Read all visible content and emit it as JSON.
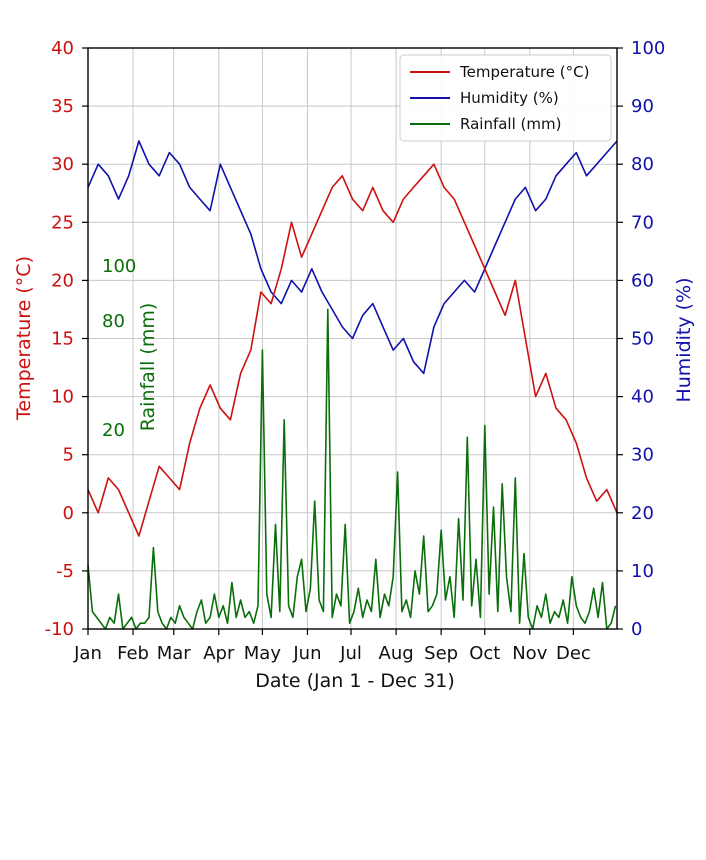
{
  "chart_data": {
    "type": "line",
    "title": "",
    "xlabel": "Date (Jan 1 - Dec 31)",
    "x_tick_labels": [
      "Jan",
      "Feb",
      "Mar",
      "Apr",
      "May",
      "Jun",
      "Jul",
      "Aug",
      "Sep",
      "Oct",
      "Nov",
      "Dec"
    ],
    "x_tick_days": [
      1,
      32,
      60,
      91,
      121,
      152,
      182,
      213,
      244,
      274,
      305,
      335
    ],
    "xlim": [
      1,
      365
    ],
    "grid": true,
    "legend_position": "top-right",
    "left_axis": {
      "label": "Temperature (°C)",
      "ylim": [
        -10,
        40
      ],
      "ticks": [
        -10,
        -5,
        0,
        5,
        10,
        15,
        20,
        25,
        30,
        35,
        40
      ],
      "color": "#cc1111"
    },
    "right_axis": {
      "label": "Humidity (%)",
      "ylim": [
        0,
        100
      ],
      "ticks": [
        0,
        10,
        20,
        30,
        40,
        50,
        60,
        70,
        80,
        90,
        100
      ],
      "color": "#1111aa"
    },
    "inset_axis": {
      "label": "Rainfall (mm)",
      "ticks": [
        "100",
        "80",
        "20"
      ],
      "color": "#0a6e0a"
    },
    "series": [
      {
        "name": "Temperature (°C)",
        "axis": "left",
        "color": "#cc1111",
        "x": [
          1,
          8,
          15,
          22,
          29,
          36,
          43,
          50,
          57,
          64,
          71,
          78,
          85,
          92,
          99,
          106,
          113,
          120,
          127,
          134,
          141,
          148,
          155,
          162,
          169,
          176,
          183,
          190,
          197,
          204,
          211,
          218,
          225,
          232,
          239,
          246,
          253,
          260,
          267,
          274,
          281,
          288,
          295,
          302,
          309,
          316,
          323,
          330,
          337,
          344,
          351,
          358,
          365
        ],
        "values": [
          2,
          0,
          3,
          2,
          0,
          -2,
          1,
          4,
          3,
          2,
          6,
          9,
          11,
          9,
          8,
          12,
          14,
          19,
          18,
          21,
          25,
          22,
          24,
          26,
          28,
          29,
          27,
          26,
          28,
          26,
          25,
          27,
          28,
          29,
          30,
          28,
          27,
          25,
          23,
          21,
          19,
          17,
          20,
          15,
          10,
          12,
          9,
          8,
          6,
          3,
          1,
          2,
          0
        ]
      },
      {
        "name": "Humidity (%)",
        "axis": "right",
        "color": "#1111aa",
        "x": [
          1,
          8,
          15,
          22,
          29,
          36,
          43,
          50,
          57,
          64,
          71,
          78,
          85,
          92,
          99,
          106,
          113,
          120,
          127,
          134,
          141,
          148,
          155,
          162,
          169,
          176,
          183,
          190,
          197,
          204,
          211,
          218,
          225,
          232,
          239,
          246,
          253,
          260,
          267,
          274,
          281,
          288,
          295,
          302,
          309,
          316,
          323,
          330,
          337,
          344,
          351,
          358,
          365
        ],
        "values": [
          76,
          80,
          78,
          74,
          78,
          84,
          80,
          78,
          82,
          80,
          76,
          74,
          72,
          80,
          76,
          72,
          68,
          62,
          58,
          56,
          60,
          58,
          62,
          58,
          55,
          52,
          50,
          54,
          56,
          52,
          48,
          50,
          46,
          44,
          52,
          56,
          58,
          60,
          58,
          62,
          66,
          70,
          74,
          76,
          72,
          74,
          78,
          80,
          82,
          78,
          80,
          82,
          84
        ]
      },
      {
        "name": "Rainfall (mm)",
        "axis": "right",
        "color": "#0a6e0a",
        "x": [
          1,
          4,
          7,
          10,
          13,
          16,
          19,
          22,
          25,
          28,
          31,
          34,
          37,
          40,
          43,
          46,
          49,
          52,
          55,
          58,
          61,
          64,
          67,
          70,
          73,
          76,
          79,
          82,
          85,
          88,
          91,
          94,
          97,
          100,
          103,
          106,
          109,
          112,
          115,
          118,
          121,
          124,
          127,
          130,
          133,
          136,
          139,
          142,
          145,
          148,
          151,
          154,
          157,
          160,
          163,
          166,
          169,
          172,
          175,
          178,
          181,
          184,
          187,
          190,
          193,
          196,
          199,
          202,
          205,
          208,
          211,
          214,
          217,
          220,
          223,
          226,
          229,
          232,
          235,
          238,
          241,
          244,
          247,
          250,
          253,
          256,
          259,
          262,
          265,
          268,
          271,
          274,
          277,
          280,
          283,
          286,
          289,
          292,
          295,
          298,
          301,
          304,
          307,
          310,
          313,
          316,
          319,
          322,
          325,
          328,
          331,
          334,
          337,
          340,
          343,
          346,
          349,
          352,
          355,
          358,
          361,
          364
        ],
        "values": [
          11,
          3,
          2,
          1,
          0,
          2,
          1,
          6,
          0,
          1,
          2,
          0,
          1,
          1,
          2,
          14,
          3,
          1,
          0,
          2,
          1,
          4,
          2,
          1,
          0,
          3,
          5,
          1,
          2,
          6,
          2,
          4,
          1,
          8,
          2,
          5,
          2,
          3,
          1,
          4,
          48,
          6,
          2,
          18,
          3,
          36,
          4,
          2,
          9,
          12,
          3,
          7,
          22,
          5,
          3,
          55,
          2,
          6,
          4,
          18,
          1,
          3,
          7,
          2,
          5,
          3,
          12,
          2,
          6,
          4,
          9,
          27,
          3,
          5,
          2,
          10,
          6,
          16,
          3,
          4,
          6,
          17,
          5,
          9,
          2,
          19,
          5,
          33,
          4,
          12,
          2,
          35,
          6,
          21,
          3,
          25,
          9,
          3,
          26,
          1,
          13,
          2,
          0,
          4,
          2,
          6,
          1,
          3,
          2,
          5,
          1,
          9,
          4,
          2,
          1,
          3,
          7,
          2,
          8,
          0,
          1,
          4
        ]
      }
    ]
  }
}
